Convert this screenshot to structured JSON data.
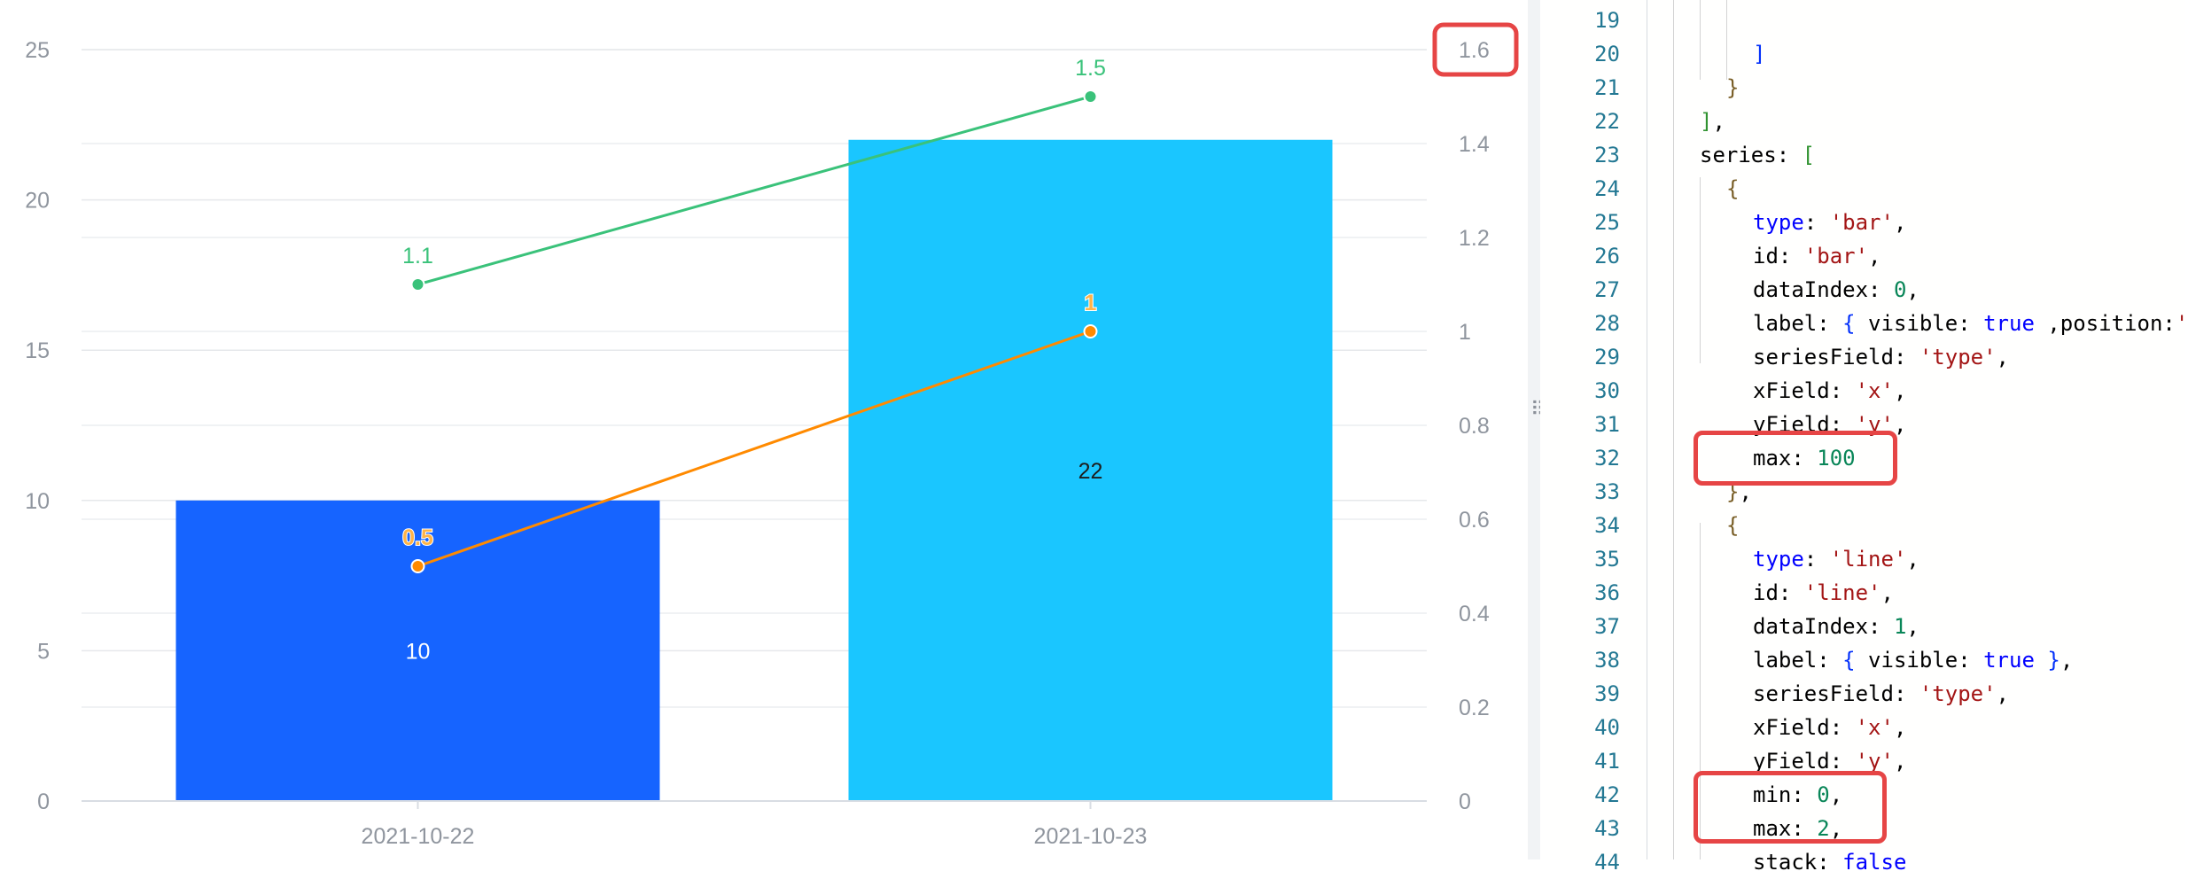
{
  "chart_data": {
    "type": "bar",
    "categories": [
      "2021-10-22",
      "2021-10-23"
    ],
    "bar_series": {
      "values": [
        10,
        22
      ],
      "colors": [
        "#1664ff",
        "#1ac6ff"
      ],
      "labels": [
        "10",
        "22"
      ]
    },
    "line_series": [
      {
        "values": [
          1.1,
          1.5
        ],
        "labels": [
          "1.1",
          "1.5"
        ],
        "color": "#3ac27a"
      },
      {
        "values": [
          0.5,
          1
        ],
        "labels": [
          "0.5",
          "1"
        ],
        "color": "#ff8a00"
      }
    ],
    "left_axis": {
      "ticks": [
        "0",
        "5",
        "10",
        "15",
        "20",
        "25"
      ],
      "values": [
        0,
        5,
        10,
        15,
        20,
        25
      ],
      "ylim": [
        0,
        25
      ]
    },
    "right_axis": {
      "ticks": [
        "0",
        "0.2",
        "0.4",
        "0.6",
        "0.8",
        "1",
        "1.2",
        "1.4",
        "1.6"
      ],
      "values": [
        0,
        0.2,
        0.4,
        0.6,
        0.8,
        1,
        1.2,
        1.4,
        1.6
      ],
      "ylim": [
        0,
        1.6
      ]
    },
    "grid": true
  },
  "editor": {
    "lines": [
      {
        "n": "19",
        "indent": 3,
        "tokens": []
      },
      {
        "n": "20",
        "indent": 3,
        "tokens": [
          [
            "br2",
            "]"
          ]
        ]
      },
      {
        "n": "21",
        "indent": 2,
        "tokens": [
          [
            "br",
            "}"
          ]
        ]
      },
      {
        "n": "22",
        "indent": 1,
        "tokens": [
          [
            "br3",
            "]"
          ],
          [
            "key",
            ","
          ]
        ]
      },
      {
        "n": "23",
        "indent": 1,
        "tokens": [
          [
            "key",
            "series: "
          ],
          [
            "br3",
            "["
          ]
        ]
      },
      {
        "n": "24",
        "indent": 2,
        "tokens": [
          [
            "br",
            "{"
          ]
        ]
      },
      {
        "n": "25",
        "indent": 3,
        "tokens": [
          [
            "kw",
            "type"
          ],
          [
            "key",
            ": "
          ],
          [
            "str",
            "'bar'"
          ],
          [
            "key",
            ","
          ]
        ]
      },
      {
        "n": "26",
        "indent": 3,
        "tokens": [
          [
            "key",
            "id: "
          ],
          [
            "str",
            "'bar'"
          ],
          [
            "key",
            ","
          ]
        ]
      },
      {
        "n": "27",
        "indent": 3,
        "tokens": [
          [
            "key",
            "dataIndex: "
          ],
          [
            "num",
            "0"
          ],
          [
            "key",
            ","
          ]
        ]
      },
      {
        "n": "28",
        "indent": 3,
        "tokens": [
          [
            "key",
            "label: "
          ],
          [
            "br2",
            "{"
          ],
          [
            "key",
            " visible: "
          ],
          [
            "kw",
            "true"
          ],
          [
            "key",
            " ,position:"
          ],
          [
            "str",
            "'"
          ]
        ]
      },
      {
        "n": "29",
        "indent": 3,
        "tokens": [
          [
            "key",
            "seriesField: "
          ],
          [
            "str",
            "'type'"
          ],
          [
            "key",
            ","
          ]
        ]
      },
      {
        "n": "30",
        "indent": 3,
        "tokens": [
          [
            "key",
            "xField: "
          ],
          [
            "str",
            "'x'"
          ],
          [
            "key",
            ","
          ]
        ]
      },
      {
        "n": "31",
        "indent": 3,
        "tokens": [
          [
            "key",
            "yField: "
          ],
          [
            "str",
            "'y'"
          ],
          [
            "key",
            ","
          ]
        ]
      },
      {
        "n": "32",
        "indent": 3,
        "tokens": [
          [
            "key",
            "max: "
          ],
          [
            "num",
            "100"
          ]
        ]
      },
      {
        "n": "33",
        "indent": 2,
        "tokens": [
          [
            "br",
            "}"
          ],
          [
            "key",
            ","
          ]
        ]
      },
      {
        "n": "34",
        "indent": 2,
        "tokens": [
          [
            "br",
            "{"
          ]
        ]
      },
      {
        "n": "35",
        "indent": 3,
        "tokens": [
          [
            "kw",
            "type"
          ],
          [
            "key",
            ": "
          ],
          [
            "str",
            "'line'"
          ],
          [
            "key",
            ","
          ]
        ]
      },
      {
        "n": "36",
        "indent": 3,
        "tokens": [
          [
            "key",
            "id: "
          ],
          [
            "str",
            "'line'"
          ],
          [
            "key",
            ","
          ]
        ]
      },
      {
        "n": "37",
        "indent": 3,
        "tokens": [
          [
            "key",
            "dataIndex: "
          ],
          [
            "num",
            "1"
          ],
          [
            "key",
            ","
          ]
        ]
      },
      {
        "n": "38",
        "indent": 3,
        "tokens": [
          [
            "key",
            "label: "
          ],
          [
            "br2",
            "{"
          ],
          [
            "key",
            " visible: "
          ],
          [
            "kw",
            "true"
          ],
          [
            "key",
            " "
          ],
          [
            "br2",
            "}"
          ],
          [
            "key",
            ","
          ]
        ]
      },
      {
        "n": "39",
        "indent": 3,
        "tokens": [
          [
            "key",
            "seriesField: "
          ],
          [
            "str",
            "'type'"
          ],
          [
            "key",
            ","
          ]
        ]
      },
      {
        "n": "40",
        "indent": 3,
        "tokens": [
          [
            "key",
            "xField: "
          ],
          [
            "str",
            "'x'"
          ],
          [
            "key",
            ","
          ]
        ]
      },
      {
        "n": "41",
        "indent": 3,
        "tokens": [
          [
            "key",
            "yField: "
          ],
          [
            "str",
            "'y'"
          ],
          [
            "key",
            ","
          ]
        ]
      },
      {
        "n": "42",
        "indent": 3,
        "tokens": [
          [
            "key",
            "min: "
          ],
          [
            "num",
            "0"
          ],
          [
            "key",
            ","
          ]
        ]
      },
      {
        "n": "43",
        "indent": 3,
        "tokens": [
          [
            "key",
            "max: "
          ],
          [
            "num",
            "2"
          ],
          [
            "key",
            ","
          ]
        ]
      },
      {
        "n": "44",
        "indent": 3,
        "tokens": [
          [
            "key",
            "stack: "
          ],
          [
            "kw",
            "false"
          ]
        ]
      }
    ]
  }
}
